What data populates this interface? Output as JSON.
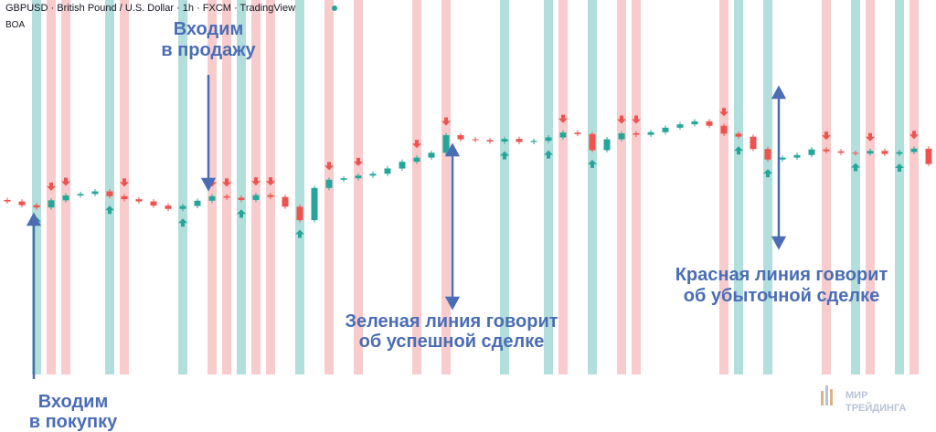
{
  "chart_data": {
    "type": "candlestick",
    "title": "GBPUSD · British Pound / U.S. Dollar · 1h · FXCM · TradingView",
    "subtitle": "BOA",
    "ylim": [
      0,
      100
    ],
    "up_color": "#26a69a",
    "down_color": "#ef5350",
    "open": [
      46.6,
      46.2,
      45.2,
      44.6,
      46.5,
      47.8,
      48.2,
      48.9,
      47.6,
      46.8,
      46.2,
      45.1,
      44.2,
      45.0,
      46.4,
      47.6,
      47.2,
      46.6,
      47.9,
      47.4,
      44.8,
      41.2,
      49.8,
      52.0,
      52.4,
      53.1,
      53.6,
      55.0,
      56.8,
      57.9,
      59.2,
      63.9,
      62.8,
      62.6,
      62.2,
      62.9,
      62.1,
      62.4,
      63.3,
      64.6,
      64.2,
      59.9,
      62.8,
      64.4,
      64.0,
      64.7,
      65.9,
      66.8,
      67.6,
      66.4,
      64.3,
      63.5,
      60.2,
      57.4,
      57.9,
      58.6,
      60.1,
      59.6,
      59.2,
      59.0,
      59.7,
      58.9,
      59.4,
      60.3
    ],
    "high": [
      47.2,
      46.8,
      45.8,
      47.1,
      48.4,
      48.8,
      49.5,
      49.5,
      48.2,
      47.4,
      46.8,
      45.7,
      45.6,
      47.0,
      48.2,
      48.2,
      47.8,
      48.5,
      48.5,
      48.0,
      45.4,
      50.4,
      52.6,
      53.0,
      53.7,
      54.2,
      55.6,
      57.4,
      58.5,
      59.8,
      64.5,
      64.5,
      63.4,
      63.2,
      63.5,
      63.5,
      63.0,
      63.9,
      65.2,
      65.2,
      64.8,
      63.4,
      65.0,
      65.0,
      65.3,
      66.5,
      67.4,
      68.2,
      68.2,
      67.0,
      64.9,
      64.1,
      60.8,
      58.5,
      59.2,
      60.7,
      60.7,
      60.2,
      59.8,
      60.3,
      60.3,
      60.0,
      60.9,
      60.9
    ],
    "low": [
      45.6,
      44.6,
      44.0,
      44.0,
      45.9,
      47.2,
      47.6,
      47.0,
      46.2,
      45.6,
      44.5,
      43.6,
      43.6,
      44.4,
      45.8,
      46.6,
      46.0,
      46.0,
      46.8,
      44.2,
      40.6,
      40.6,
      49.2,
      51.4,
      51.8,
      52.5,
      53.0,
      54.4,
      56.2,
      57.3,
      58.6,
      62.2,
      62.0,
      61.6,
      61.6,
      61.5,
      61.5,
      61.8,
      62.7,
      63.6,
      59.3,
      59.3,
      62.2,
      63.4,
      63.4,
      64.1,
      65.3,
      66.2,
      65.8,
      63.7,
      62.9,
      59.6,
      56.8,
      56.8,
      57.3,
      58.0,
      59.0,
      58.6,
      58.4,
      58.4,
      58.3,
      58.3,
      58.8,
      55.6
    ],
    "close": [
      46.2,
      45.2,
      44.6,
      46.5,
      47.8,
      48.2,
      48.9,
      47.6,
      46.8,
      46.2,
      45.1,
      44.2,
      45.0,
      46.4,
      47.6,
      47.2,
      46.6,
      47.9,
      47.4,
      44.8,
      41.2,
      49.8,
      52.0,
      52.4,
      53.1,
      53.6,
      55.0,
      56.8,
      57.9,
      59.2,
      63.9,
      62.8,
      62.6,
      62.2,
      62.9,
      62.1,
      62.4,
      63.3,
      64.6,
      64.2,
      59.9,
      62.8,
      64.4,
      64.0,
      64.7,
      65.9,
      66.8,
      67.6,
      66.4,
      64.3,
      63.5,
      60.2,
      57.4,
      57.9,
      58.6,
      60.1,
      59.6,
      59.2,
      59.0,
      59.7,
      58.9,
      59.4,
      60.3,
      56.2
    ],
    "buy_signals": [
      2,
      7,
      12,
      16,
      20,
      34,
      37,
      40,
      50,
      52,
      58,
      61
    ],
    "sell_signals": [
      3,
      4,
      8,
      14,
      15,
      17,
      18,
      22,
      24,
      28,
      30,
      38,
      42,
      43,
      49,
      56,
      59,
      62
    ],
    "buy_color": "#b2dfdb",
    "sell_color": "#f8cccc",
    "annotations": [
      {
        "lines": [
          "Входим",
          "в продажу"
        ]
      },
      {
        "lines": [
          "Входим",
          "в покупку"
        ]
      },
      {
        "lines": [
          "Зеленая линия говорит",
          "об успешной сделке"
        ]
      },
      {
        "lines": [
          "Красная линия говорит",
          "об убыточной сделке"
        ]
      }
    ],
    "watermark": [
      "МИР",
      "ТРЕЙДИНГА"
    ]
  }
}
